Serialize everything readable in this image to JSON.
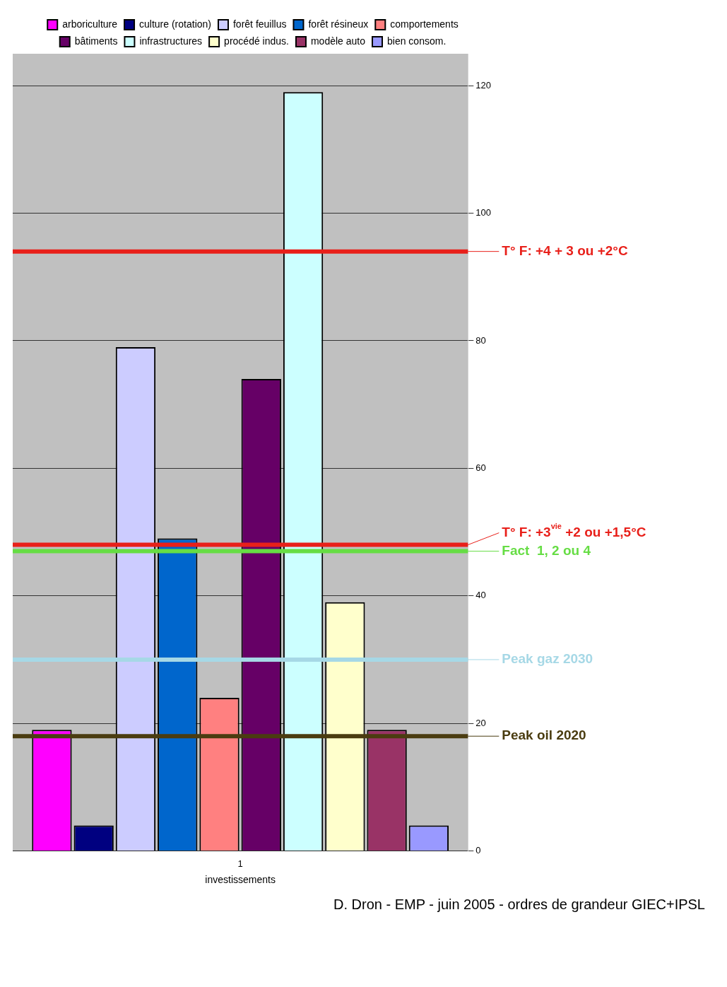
{
  "chart_data": {
    "type": "bar",
    "xlabel": "investissements",
    "categories": [
      "1"
    ],
    "series": [
      {
        "name": "arboriculture",
        "color": "#ff00ff",
        "values": [
          19
        ]
      },
      {
        "name": "culture (rotation)",
        "color": "#000080",
        "values": [
          4
        ]
      },
      {
        "name": "forêt feuillus",
        "color": "#ccccff",
        "values": [
          79
        ]
      },
      {
        "name": "forêt résineux",
        "color": "#0066cc",
        "values": [
          49
        ]
      },
      {
        "name": "comportements",
        "color": "#ff8080",
        "values": [
          24
        ]
      },
      {
        "name": "bâtiments",
        "color": "#660066",
        "values": [
          74
        ]
      },
      {
        "name": "infrastructures",
        "color": "#ccffff",
        "values": [
          119
        ]
      },
      {
        "name": "procédé indus.",
        "color": "#ffffcc",
        "values": [
          39
        ]
      },
      {
        "name": "modèle auto",
        "color": "#993366",
        "values": [
          19
        ]
      },
      {
        "name": "bien consom.",
        "color": "#9999ff",
        "values": [
          4
        ]
      }
    ],
    "ylim": [
      0,
      125
    ],
    "yticks": [
      0,
      20,
      40,
      60,
      80,
      100,
      120
    ],
    "grid": "y",
    "legend": "top",
    "ref_lines": [
      {
        "axis": "y",
        "value": 18,
        "label": "Peak oil 2020",
        "color": "#4a3c10"
      },
      {
        "axis": "y",
        "value": 30,
        "label": "Peak gaz 2030",
        "color": "#a6d8e6"
      },
      {
        "axis": "y",
        "value": 47,
        "label": "Fact  1, 2 ou 4",
        "color": "#66dd44"
      },
      {
        "axis": "y",
        "value": 48,
        "label": "T° F: +3$^{vie}$ +2 ou +1,5°C",
        "color": "#e8201a"
      },
      {
        "axis": "y",
        "value": 94,
        "label": "T° F: +4 + 3 ou +2°C",
        "color": "#e8201a"
      }
    ],
    "annotations": [
      "D. Dron - EMP - juin 2005 - ordres de grandeur GIEC+IPSL"
    ]
  }
}
